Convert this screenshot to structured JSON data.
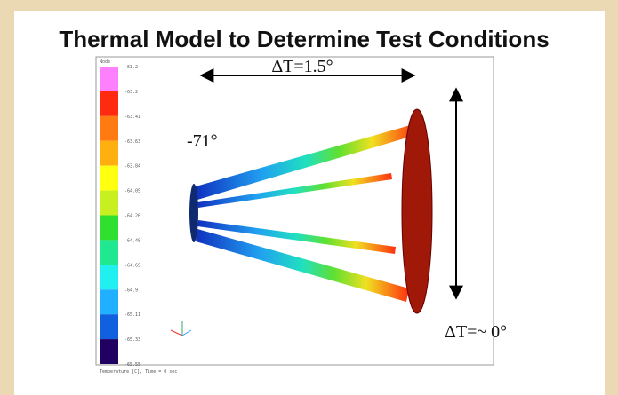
{
  "slide": {
    "title": "Thermal Model to Determine Test Conditions",
    "annotations": {
      "span_delta": "ΔT=1.5°",
      "hub_temp": "-71°",
      "dish_delta": "ΔT=~ 0°"
    },
    "legend": {
      "title": "Node",
      "labels": [
        "-63.2",
        "-63.2",
        "-63.41",
        "-63.63",
        "-63.84",
        "-64.05",
        "-64.26",
        "-64.48",
        "-64.69",
        "-64.9",
        "-65.11",
        "-65.33",
        "-65.55"
      ],
      "colors": [
        "#ff80ff",
        "#ff2a10",
        "#ff7a10",
        "#ffb010",
        "#ffff10",
        "#c8f020",
        "#30e030",
        "#20e890",
        "#20f0f0",
        "#20b0ff",
        "#1060e0",
        "#200060"
      ]
    },
    "footer": "Temperature [C], Time = 0 sec"
  }
}
